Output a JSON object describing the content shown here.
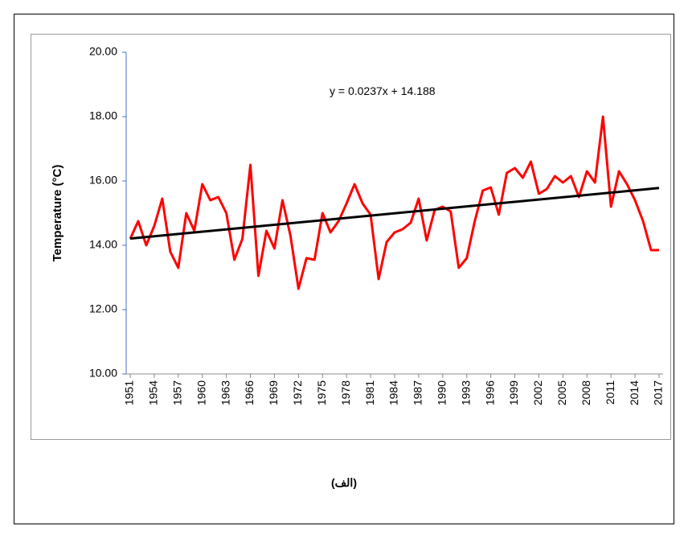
{
  "chart_data": {
    "type": "line",
    "ylabel": "Temperature (°C)",
    "annotation": "y = 0.0237x + 14.188",
    "caption": "(الف)",
    "x": [
      1951,
      1952,
      1953,
      1954,
      1955,
      1956,
      1957,
      1958,
      1959,
      1960,
      1961,
      1962,
      1963,
      1964,
      1965,
      1966,
      1967,
      1968,
      1969,
      1970,
      1971,
      1972,
      1973,
      1974,
      1975,
      1976,
      1977,
      1978,
      1979,
      1980,
      1981,
      1982,
      1983,
      1984,
      1985,
      1986,
      1987,
      1988,
      1989,
      1990,
      1991,
      1992,
      1993,
      1994,
      1995,
      1996,
      1997,
      1998,
      1999,
      2000,
      2001,
      2002,
      2003,
      2004,
      2005,
      2006,
      2007,
      2008,
      2009,
      2010,
      2011,
      2012,
      2013,
      2014,
      2015,
      2016,
      2017
    ],
    "series": [
      {
        "color": "#ff0000",
        "values": [
          14.2,
          14.75,
          14.0,
          14.6,
          15.45,
          13.8,
          13.3,
          15.0,
          14.45,
          15.9,
          15.4,
          15.5,
          15.0,
          13.55,
          14.2,
          16.5,
          13.05,
          14.45,
          13.9,
          15.4,
          14.3,
          12.65,
          13.6,
          13.55,
          15.0,
          14.4,
          14.75,
          15.3,
          15.9,
          15.3,
          14.95,
          12.95,
          14.1,
          14.4,
          14.5,
          14.7,
          15.45,
          14.15,
          15.1,
          15.2,
          15.05,
          13.3,
          13.6,
          14.75,
          15.7,
          15.8,
          14.95,
          16.25,
          16.4,
          16.1,
          16.6,
          15.6,
          15.75,
          16.15,
          15.95,
          16.15,
          15.5,
          16.3,
          15.95,
          18.0,
          15.2,
          16.3,
          15.9,
          15.4,
          14.75,
          13.85,
          13.85
        ]
      }
    ],
    "trend": {
      "color": "#000000",
      "x": [
        1951,
        2017
      ],
      "values": [
        14.21,
        15.78
      ]
    },
    "xlim": [
      1951,
      2017
    ],
    "xticks": [
      1951,
      1954,
      1957,
      1960,
      1963,
      1966,
      1969,
      1972,
      1975,
      1978,
      1981,
      1984,
      1987,
      1990,
      1993,
      1996,
      1999,
      2002,
      2005,
      2008,
      2011,
      2014,
      2017
    ],
    "ylim": [
      10,
      20
    ],
    "yticks": [
      {
        "value": 10,
        "label": "10.00"
      },
      {
        "value": 12,
        "label": "12.00"
      },
      {
        "value": 14,
        "label": "14.00"
      },
      {
        "value": 16,
        "label": "16.00"
      },
      {
        "value": 18,
        "label": "18.00"
      },
      {
        "value": 20,
        "label": "20.00"
      }
    ]
  }
}
